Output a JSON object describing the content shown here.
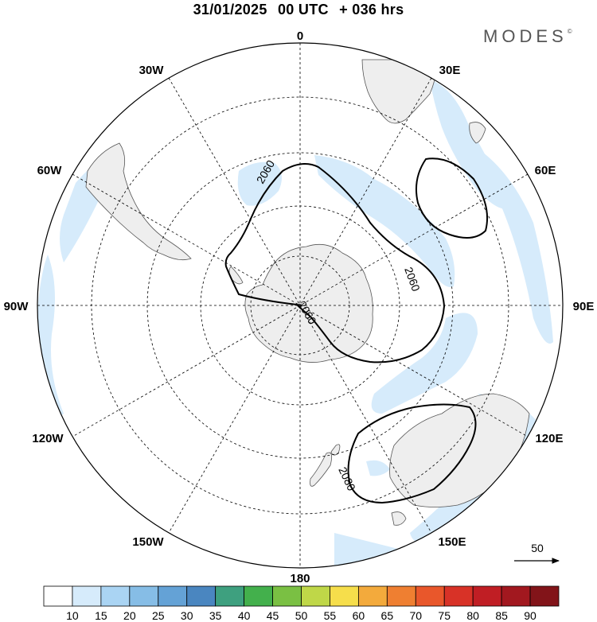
{
  "header": {
    "date": "31/01/2025",
    "run": "00 UTC",
    "lead": "+ 036 hrs"
  },
  "logo": {
    "text": "MODES",
    "mark": "©"
  },
  "map": {
    "projection": "south-polar-stereographic",
    "longitude_labels": {
      "deg0": "0",
      "e30": "30E",
      "e60": "60E",
      "e90": "90E",
      "e120": "120E",
      "e150": "150E",
      "deg180": "180",
      "w150": "150W",
      "w120": "120W",
      "w90": "90W",
      "w60": "60W",
      "w30": "30W"
    },
    "contour_labels": {
      "c1": "2060",
      "c2": "2060",
      "c3": "2060",
      "c4": "2080"
    },
    "colors": {
      "land": "#eeeeee",
      "coast": "#555555",
      "wind_fill": "#d6ebfb",
      "contour": "#000000",
      "grid": "#000000"
    }
  },
  "reference_vector": {
    "label": "50"
  },
  "colorbar": {
    "labels": [
      "10",
      "15",
      "20",
      "25",
      "30",
      "35",
      "40",
      "45",
      "50",
      "55",
      "60",
      "65",
      "70",
      "75",
      "80",
      "85",
      "90"
    ],
    "colors": [
      "#ffffff",
      "#d6ebfb",
      "#aad4f3",
      "#86bde6",
      "#64a2d6",
      "#4a86c0",
      "#3ea07f",
      "#43b04c",
      "#7ac043",
      "#bfd748",
      "#f6de4b",
      "#f3aa3c",
      "#ef7f31",
      "#e9572b",
      "#d83227",
      "#c01e24",
      "#a2181f",
      "#821419"
    ]
  }
}
